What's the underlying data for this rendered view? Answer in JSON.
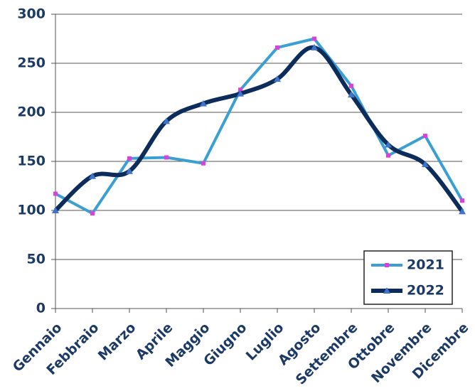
{
  "chart_data": {
    "type": "line",
    "categories": [
      "Gennaio",
      "Febbraio",
      "Marzo",
      "Aprile",
      "Maggio",
      "Giugno",
      "Luglio",
      "Agosto",
      "Settembre",
      "Ottobre",
      "Novembre",
      "Dicembre"
    ],
    "series": [
      {
        "name": "2021",
        "color": "#3a9fd2",
        "marker": "square",
        "marker_color": "#e03ce0",
        "smooth": false,
        "values": [
          117,
          97,
          153,
          154,
          148,
          223,
          266,
          275,
          227,
          156,
          176,
          110
        ]
      },
      {
        "name": "2022",
        "color": "#0c2c5c",
        "marker": "triangle",
        "marker_color": "#3f74cc",
        "smooth": true,
        "values": [
          100,
          135,
          140,
          191,
          209,
          219,
          234,
          266,
          218,
          167,
          147,
          99
        ]
      }
    ],
    "ylim": [
      0,
      300
    ],
    "yticks": [
      0,
      50,
      100,
      150,
      200,
      250,
      300
    ],
    "grid": true,
    "legend": "lower right"
  }
}
